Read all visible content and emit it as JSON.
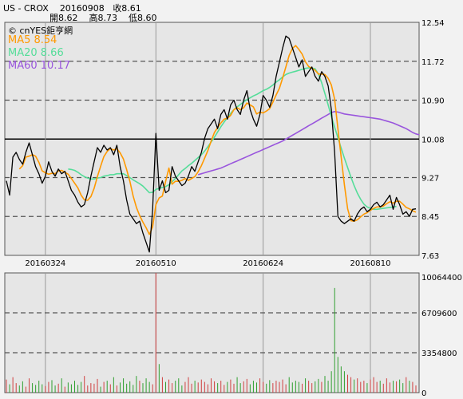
{
  "header": {
    "symbol": "US - CROX",
    "date": "20160908",
    "close": "收8.61",
    "open": "開8.62",
    "high": "高8.73",
    "low": "低8.60",
    "brand": "© cnYES鉅亨網"
  },
  "colors": {
    "price": "#000000",
    "ma5": "#ff9900",
    "ma20": "#55dd99",
    "ma60": "#9955dd",
    "volume_up": "#d04040",
    "volume_down": "#30a030"
  },
  "chart_data": [
    {
      "type": "line",
      "ylim": [
        7.63,
        12.54
      ],
      "yticks": [
        "12.54",
        "11.72",
        "10.90",
        "10.08",
        "9.27",
        "8.45",
        "7.63"
      ],
      "xticks": [
        "20160324",
        "20160510",
        "20160624",
        "20160810"
      ],
      "grid": true,
      "legend_position": "top-left",
      "series": [
        {
          "name": "Close",
          "values": [
            9.2,
            8.9,
            9.7,
            9.8,
            9.65,
            9.55,
            9.8,
            10.0,
            9.75,
            9.5,
            9.35,
            9.15,
            9.3,
            9.6,
            9.4,
            9.3,
            9.45,
            9.35,
            9.4,
            9.2,
            9.0,
            8.9,
            8.75,
            8.65,
            8.7,
            8.95,
            9.3,
            9.6,
            9.9,
            9.8,
            9.95,
            9.85,
            9.9,
            9.75,
            9.95,
            9.5,
            9.2,
            8.8,
            8.5,
            8.4,
            8.3,
            8.35,
            8.1,
            7.9,
            7.7,
            8.6,
            10.2,
            9.0,
            9.2,
            8.95,
            9.0,
            9.5,
            9.3,
            9.2,
            9.1,
            9.15,
            9.3,
            9.5,
            9.4,
            9.6,
            9.8,
            10.1,
            10.3,
            10.4,
            10.5,
            10.3,
            10.6,
            10.7,
            10.5,
            10.8,
            10.9,
            10.7,
            10.6,
            10.9,
            11.1,
            10.7,
            10.5,
            10.35,
            10.6,
            11.0,
            10.9,
            10.75,
            11.0,
            11.4,
            11.7,
            12.0,
            12.25,
            12.2,
            12.0,
            11.8,
            11.6,
            11.75,
            11.4,
            11.5,
            11.6,
            11.4,
            11.3,
            11.5,
            11.4,
            11.2,
            10.7,
            9.8,
            8.45,
            8.35,
            8.3,
            8.35,
            8.4,
            8.35,
            8.5,
            8.6,
            8.65,
            8.55,
            8.6,
            8.7,
            8.75,
            8.65,
            8.7,
            8.8,
            8.9,
            8.6,
            8.85,
            8.7,
            8.5,
            8.55,
            8.45,
            8.6,
            8.61
          ]
        },
        {
          "name": "MA5",
          "legend": "MA5 8.54",
          "values": [
            null,
            null,
            null,
            null,
            9.45,
            9.52,
            9.7,
            9.72,
            9.75,
            9.72,
            9.59,
            9.41,
            9.37,
            9.34,
            9.36,
            9.35,
            9.41,
            9.42,
            9.38,
            9.34,
            9.25,
            9.15,
            9.05,
            8.9,
            8.8,
            8.79,
            8.87,
            9.04,
            9.29,
            9.51,
            9.71,
            9.82,
            9.88,
            9.85,
            9.88,
            9.79,
            9.66,
            9.44,
            9.19,
            8.88,
            8.64,
            8.47,
            8.33,
            8.21,
            8.07,
            8.23,
            8.7,
            8.84,
            8.88,
            9.19,
            9.47,
            9.13,
            9.19,
            9.19,
            9.21,
            9.25,
            9.21,
            9.25,
            9.29,
            9.39,
            9.52,
            9.68,
            9.84,
            10.04,
            10.22,
            10.32,
            10.42,
            10.5,
            10.52,
            10.58,
            10.7,
            10.74,
            10.7,
            10.74,
            10.84,
            10.8,
            10.76,
            10.61,
            10.65,
            10.63,
            10.67,
            10.72,
            10.86,
            11.01,
            11.15,
            11.37,
            11.6,
            11.84,
            11.99,
            12.05,
            11.97,
            11.87,
            11.71,
            11.61,
            11.57,
            11.53,
            11.45,
            11.45,
            11.44,
            11.36,
            11.22,
            10.92,
            10.3,
            9.7,
            9.12,
            8.61,
            8.36,
            8.35,
            8.38,
            8.44,
            8.5,
            8.53,
            8.58,
            8.62,
            8.65,
            8.65,
            8.67,
            8.72,
            8.76,
            8.73,
            8.77,
            8.77,
            8.71,
            8.64,
            8.61,
            8.57,
            8.54
          ]
        },
        {
          "name": "MA20",
          "legend": "MA20 8.66",
          "values": [
            null,
            null,
            null,
            null,
            null,
            null,
            null,
            null,
            null,
            null,
            null,
            null,
            null,
            null,
            null,
            null,
            null,
            null,
            null,
            9.45,
            9.44,
            9.42,
            9.38,
            9.33,
            9.29,
            9.26,
            9.24,
            9.24,
            9.26,
            9.27,
            9.3,
            9.31,
            9.33,
            9.33,
            9.35,
            9.35,
            9.35,
            9.31,
            9.27,
            9.22,
            9.18,
            9.14,
            9.09,
            9.02,
            8.95,
            8.96,
            9.02,
            9.04,
            9.06,
            9.08,
            9.12,
            9.18,
            9.25,
            9.33,
            9.41,
            9.46,
            9.52,
            9.57,
            9.63,
            9.69,
            9.75,
            9.83,
            9.92,
            10.02,
            10.12,
            10.23,
            10.34,
            10.44,
            10.53,
            10.62,
            10.7,
            10.76,
            10.81,
            10.86,
            10.91,
            10.95,
            10.99,
            11.02,
            11.06,
            11.1,
            11.13,
            11.17,
            11.22,
            11.28,
            11.33,
            11.39,
            11.44,
            11.47,
            11.49,
            11.51,
            11.53,
            11.55,
            11.57,
            11.58,
            11.58,
            11.56,
            11.45,
            11.27,
            11.04,
            10.8,
            10.56,
            10.33,
            10.11,
            9.89,
            9.68,
            9.48,
            9.28,
            9.1,
            8.94,
            8.81,
            8.71,
            8.65,
            8.62,
            8.6,
            8.6,
            8.61,
            8.62,
            8.63,
            8.64,
            8.65,
            8.66
          ]
        },
        {
          "name": "MA60",
          "legend": "MA60 10.17",
          "values": [
            null,
            null,
            null,
            null,
            null,
            null,
            null,
            null,
            null,
            null,
            null,
            null,
            null,
            null,
            null,
            null,
            null,
            null,
            null,
            null,
            null,
            null,
            null,
            null,
            null,
            null,
            null,
            null,
            null,
            null,
            null,
            null,
            null,
            null,
            null,
            null,
            null,
            null,
            null,
            null,
            null,
            null,
            null,
            null,
            null,
            null,
            null,
            null,
            null,
            null,
            null,
            null,
            null,
            null,
            null,
            null,
            null,
            null,
            null,
            9.33,
            9.35,
            9.37,
            9.39,
            9.41,
            9.43,
            9.45,
            9.47,
            9.5,
            9.53,
            9.56,
            9.59,
            9.62,
            9.65,
            9.68,
            9.71,
            9.74,
            9.77,
            9.8,
            9.83,
            9.86,
            9.89,
            9.92,
            9.95,
            9.98,
            10.01,
            10.04,
            10.08,
            10.12,
            10.16,
            10.2,
            10.24,
            10.28,
            10.32,
            10.36,
            10.4,
            10.44,
            10.48,
            10.52,
            10.56,
            10.6,
            10.64,
            10.66,
            10.65,
            10.63,
            10.61,
            10.6,
            10.59,
            10.58,
            10.57,
            10.56,
            10.55,
            10.54,
            10.53,
            10.52,
            10.51,
            10.5,
            10.48,
            10.46,
            10.44,
            10.42,
            10.39,
            10.36,
            10.33,
            10.3,
            10.26,
            10.22,
            10.19,
            10.17
          ]
        }
      ]
    },
    {
      "type": "bar",
      "ylim": [
        0,
        10064400
      ],
      "yticks": [
        "10064400",
        "6709600",
        "3354800",
        "0"
      ],
      "grid": true,
      "values": [
        1100000,
        700000,
        1300000,
        800000,
        600000,
        950000,
        500000,
        1200000,
        800000,
        650000,
        1000000,
        700000,
        550000,
        900000,
        1050000,
        600000,
        750000,
        1200000,
        500000,
        850000,
        700000,
        1000000,
        650000,
        900000,
        1400000,
        600000,
        800000,
        750000,
        1150000,
        500000,
        900000,
        1000000,
        700000,
        1300000,
        600000,
        850000,
        1200000,
        750000,
        950000,
        650000,
        1400000,
        1000000,
        800000,
        1200000,
        900000,
        700000,
        10064400,
        2400000,
        1300000,
        900000,
        1100000,
        800000,
        1000000,
        1200000,
        600000,
        900000,
        1300000,
        750000,
        1000000,
        850000,
        1100000,
        900000,
        700000,
        1200000,
        950000,
        800000,
        1000000,
        650000,
        900000,
        1100000,
        750000,
        1300000,
        800000,
        950000,
        1150000,
        700000,
        1000000,
        850000,
        1200000,
        900000,
        750000,
        1050000,
        800000,
        1000000,
        900000,
        1100000,
        700000,
        1300000,
        850000,
        1000000,
        900000,
        750000,
        1200000,
        1000000,
        800000,
        950000,
        1150000,
        900000,
        1400000,
        1000000,
        1800000,
        8800000,
        3000000,
        2200000,
        1800000,
        1500000,
        1300000,
        1100000,
        1200000,
        900000,
        1000000,
        800000,
        1100000,
        1300000,
        900000,
        1000000,
        750000,
        1200000,
        850000,
        1000000,
        950000,
        1100000,
        800000,
        1300000,
        1000000,
        900000,
        600000
      ]
    }
  ]
}
